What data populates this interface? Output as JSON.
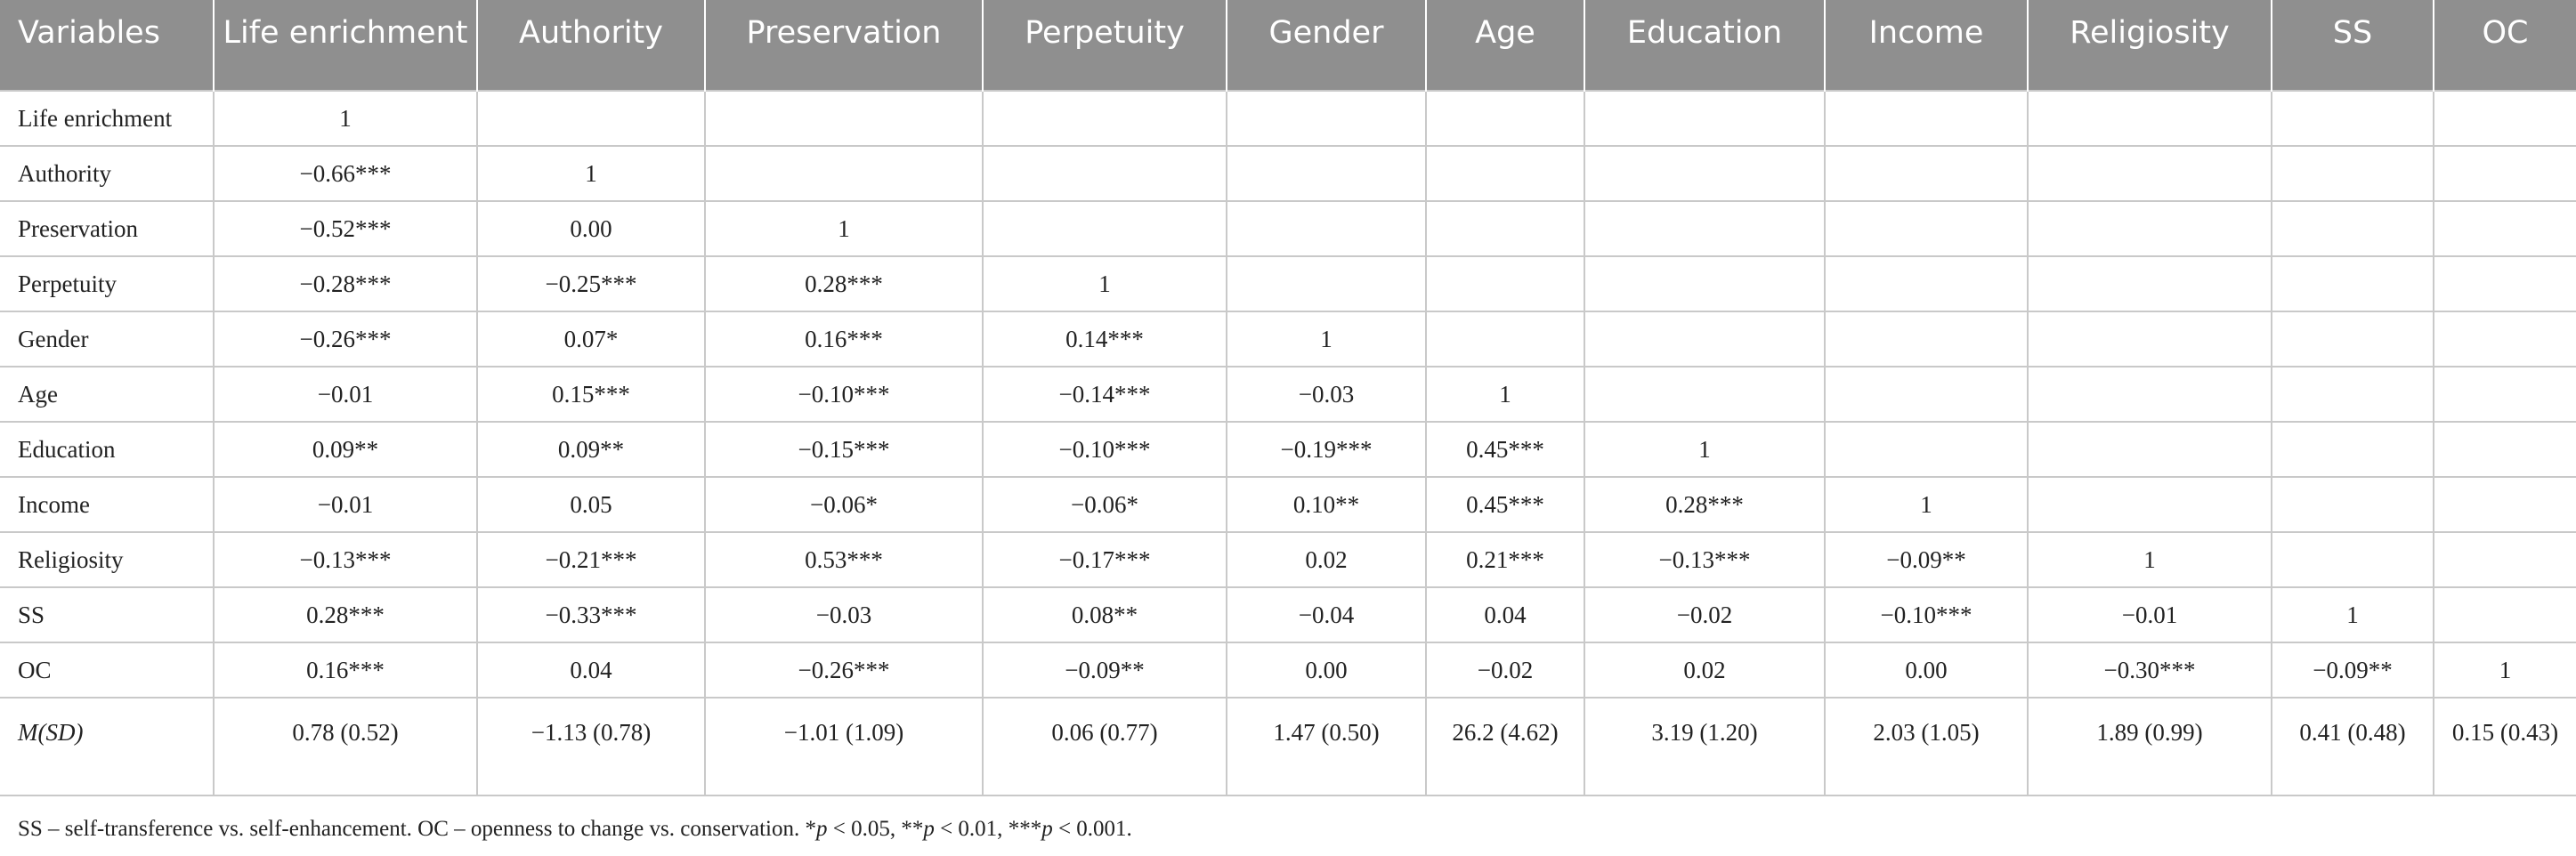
{
  "headers": [
    "Variables",
    "Life enrichment",
    "Authority",
    "Preservation",
    "Perpetuity",
    "Gender",
    "Age",
    "Education",
    "Income",
    "Religiosity",
    "SS",
    "OC"
  ],
  "rows": [
    [
      "Life enrichment",
      "1",
      "",
      "",
      "",
      "",
      "",
      "",
      "",
      "",
      "",
      ""
    ],
    [
      "Authority",
      "−0.66***",
      "1",
      "",
      "",
      "",
      "",
      "",
      "",
      "",
      "",
      ""
    ],
    [
      "Preservation",
      "−0.52***",
      "0.00",
      "1",
      "",
      "",
      "",
      "",
      "",
      "",
      "",
      ""
    ],
    [
      "Perpetuity",
      "−0.28***",
      "−0.25***",
      "0.28***",
      "1",
      "",
      "",
      "",
      "",
      "",
      "",
      ""
    ],
    [
      "Gender",
      "−0.26***",
      "0.07*",
      "0.16***",
      "0.14***",
      "1",
      "",
      "",
      "",
      "",
      "",
      ""
    ],
    [
      "Age",
      "−0.01",
      "0.15***",
      "−0.10***",
      "−0.14***",
      "−0.03",
      "1",
      "",
      "",
      "",
      "",
      ""
    ],
    [
      "Education",
      "0.09**",
      "0.09**",
      "−0.15***",
      "−0.10***",
      "−0.19***",
      "0.45***",
      "1",
      "",
      "",
      "",
      ""
    ],
    [
      "Income",
      "−0.01",
      "0.05",
      "−0.06*",
      "−0.06*",
      "0.10**",
      "0.45***",
      "0.28***",
      "1",
      "",
      "",
      ""
    ],
    [
      "Religiosity",
      "−0.13***",
      "−0.21***",
      "0.53***",
      "−0.17***",
      "0.02",
      "0.21***",
      "−0.13***",
      "−0.09**",
      "1",
      "",
      ""
    ],
    [
      "SS",
      "0.28***",
      "−0.33***",
      "−0.03",
      "0.08**",
      "−0.04",
      "0.04",
      "−0.02",
      "−0.10***",
      "−0.01",
      "1",
      ""
    ],
    [
      "OC",
      "0.16***",
      "0.04",
      "−0.26***",
      "−0.09**",
      "0.00",
      "−0.02",
      "0.02",
      "0.00",
      "−0.30***",
      "−0.09**",
      "1"
    ],
    [
      "M(SD)",
      "0.78 (0.52)",
      "−1.13 (0.78)",
      "−1.01 (1.09)",
      "0.06 (0.77)",
      "1.47 (0.50)",
      "26.2 (4.62)",
      "3.19 (1.20)",
      "2.03 (1.05)",
      "1.89 (0.99)",
      "0.41 (0.48)",
      "0.15 (0.43)"
    ]
  ],
  "footnote": {
    "definitions": "SS – self-transference vs. self-enhancement. OC – openness to change vs. conservation. ",
    "sig1_stars": "*",
    "sig1_p": "p",
    "sig1_rest": " < 0.05, ",
    "sig2_stars": "**",
    "sig2_p": "p",
    "sig2_rest": " < 0.01, ",
    "sig3_stars": "***",
    "sig3_p": "p",
    "sig3_rest": " < 0.001."
  }
}
